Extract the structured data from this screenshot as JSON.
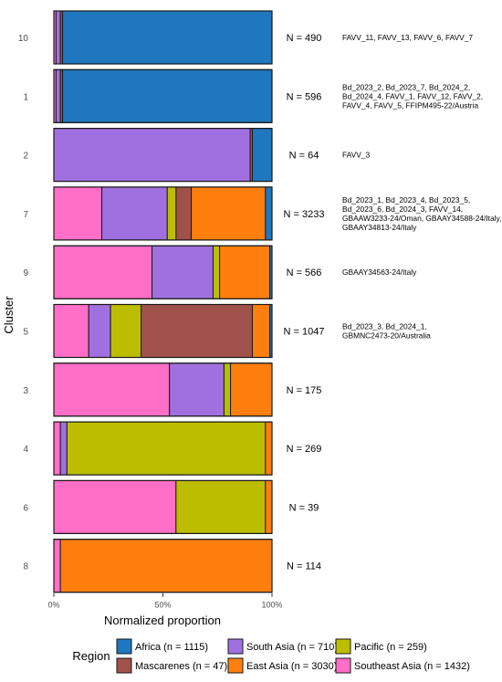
{
  "chart_data": {
    "type": "bar",
    "orientation": "horizontal",
    "stacked": true,
    "normalized": true,
    "title": "",
    "xlabel": "Normalized proportion",
    "ylabel": "Cluster",
    "xlim": [
      0,
      1
    ],
    "x_ticks": [
      {
        "value": 0,
        "label": "0%"
      },
      {
        "value": 0.5,
        "label": "50%"
      },
      {
        "value": 1,
        "label": "100%"
      }
    ],
    "grid": false,
    "legend": {
      "position": "bottom",
      "title": "Region",
      "entries": [
        {
          "key": "Africa",
          "label": "Africa (n = 1115)"
        },
        {
          "key": "Mascarenes",
          "label": "Mascarenes (n = 47)"
        },
        {
          "key": "South Asia",
          "label": "South Asia (n = 710)"
        },
        {
          "key": "East Asia",
          "label": "East Asia (n = 3030)"
        },
        {
          "key": "Pacific",
          "label": "Pacific (n = 259)"
        },
        {
          "key": "Southeast Asia",
          "label": "Southeast Asia (n = 1432)"
        }
      ]
    },
    "colors": {
      "Southeast Asia": "#FF6EC7",
      "South Asia": "#A070E0",
      "Pacific": "#BDBD00",
      "Mascarenes": "#A0524A",
      "East Asia": "#FF7F0E",
      "Africa": "#1F77C0"
    },
    "stack_order": [
      "Southeast Asia",
      "South Asia",
      "Pacific",
      "Mascarenes",
      "East Asia",
      "Africa"
    ],
    "categories": [
      "10",
      "1",
      "2",
      "7",
      "9",
      "5",
      "3",
      "4",
      "6",
      "8"
    ],
    "series": [
      {
        "name": "Southeast Asia",
        "values": [
          0.01,
          0.01,
          0.0,
          0.22,
          0.45,
          0.16,
          0.53,
          0.03,
          0.56,
          0.03
        ]
      },
      {
        "name": "South Asia",
        "values": [
          0.02,
          0.02,
          0.9,
          0.3,
          0.28,
          0.1,
          0.25,
          0.03,
          0.0,
          0.0
        ]
      },
      {
        "name": "Pacific",
        "values": [
          0.0,
          0.0,
          0.0,
          0.04,
          0.03,
          0.14,
          0.03,
          0.91,
          0.41,
          0.0
        ]
      },
      {
        "name": "Mascarenes",
        "values": [
          0.01,
          0.01,
          0.01,
          0.07,
          0.0,
          0.51,
          0.0,
          0.0,
          0.0,
          0.0
        ]
      },
      {
        "name": "East Asia",
        "values": [
          0.0,
          0.0,
          0.0,
          0.34,
          0.23,
          0.08,
          0.19,
          0.03,
          0.03,
          0.97
        ]
      },
      {
        "name": "Africa",
        "values": [
          0.96,
          0.96,
          0.09,
          0.03,
          0.01,
          0.01,
          0.0,
          0.0,
          0.0,
          0.0
        ]
      }
    ],
    "n_labels": [
      "N = 490",
      "N = 596",
      "N = 64",
      "N = 3233",
      "N = 566",
      "N = 1047",
      "N = 175",
      "N = 269",
      "N = 39",
      "N = 114"
    ],
    "annotations": [
      [
        "FAVV_11, FAVV_13, FAVV_6, FAVV_7"
      ],
      [
        "Bd_2023_2, Bd_2023_7, Bd_2024_2,",
        "Bd_2024_4, FAVV_1, FAVV_12, FAVV_2,",
        "FAVV_4, FAVV_5, FFIPM495-22/Austria"
      ],
      [
        "FAVV_3"
      ],
      [
        "Bd_2023_1, Bd_2023_4, Bd_2023_5,",
        "Bd_2023_6, Bd_2024_3, FAVV_14,",
        "GBAAW3233-24/Oman, GBAAY34588-24/Italy,",
        "GBAAY34813-24/Italy"
      ],
      [
        "GBAAY34563-24/Italy"
      ],
      [
        "Bd_2023_3, Bd_2024_1,",
        "GBMNC2473-20/Australia"
      ],
      [],
      [],
      [],
      []
    ]
  }
}
